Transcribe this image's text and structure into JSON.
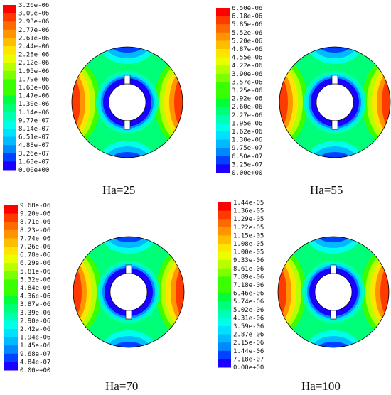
{
  "colormap": [
    "#1a00ff",
    "#0042ff",
    "#0088ff",
    "#00b9ff",
    "#00e0ff",
    "#00ffe6",
    "#00ffb0",
    "#00ff78",
    "#00ff3a",
    "#3aff00",
    "#7cff00",
    "#b6ff00",
    "#e9ff00",
    "#ffe400",
    "#ffbd00",
    "#ff9400",
    "#ff6a00",
    "#ff3a00",
    "#ff0000"
  ],
  "panels": [
    {
      "caption": "Ha=25",
      "labels": [
        "3.26e-06",
        "3.09e-06",
        "2.93e-06",
        "2.77e-06",
        "2.61e-06",
        "2.44e-06",
        "2.28e-06",
        "2.12e-06",
        "1.95e-06",
        "1.79e-06",
        "1.63e-06",
        "1.47e-06",
        "1.30e-06",
        "1.14e-06",
        "9.77e-07",
        "8.14e-07",
        "6.51e-07",
        "4.88e-07",
        "3.26e-07",
        "1.63e-07",
        "0.00e+00"
      ]
    },
    {
      "caption": "Ha=55",
      "labels": [
        "6.50e-06",
        "6.18e-06",
        "5.85e-06",
        "5.52e-06",
        "5.20e-06",
        "4.87e-06",
        "4.55e-06",
        "4.22e-06",
        "3.90e-06",
        "3.57e-06",
        "3.25e-06",
        "2.92e-06",
        "2.60e-06",
        "2.27e-06",
        "1.95e-06",
        "1.62e-06",
        "1.30e-06",
        "9.75e-07",
        "6.50e-07",
        "3.25e-07",
        "0.00e+00"
      ]
    },
    {
      "caption": "Ha=70",
      "labels": [
        "9.68e-06",
        "9.20e-06",
        "8.71e-06",
        "8.23e-06",
        "7.74e-06",
        "7.26e-06",
        "6.78e-06",
        "6.29e-06",
        "5.81e-06",
        "5.32e-06",
        "4.84e-06",
        "4.36e-06",
        "3.87e-06",
        "3.39e-06",
        "2.90e-06",
        "2.42e-06",
        "1.94e-06",
        "1.45e-06",
        "9.68e-07",
        "4.84e-07",
        "0.00e+00"
      ]
    },
    {
      "caption": "Ha=100",
      "labels": [
        "1.44e-05",
        "1.36e-05",
        "1.29e-05",
        "1.22e-05",
        "1.15e-05",
        "1.08e-05",
        "1.00e-05",
        "9.33e-06",
        "8.61e-06",
        "7.89e-06",
        "7.18e-06",
        "6.46e-06",
        "5.74e-06",
        "5.02e-06",
        "4.31e-06",
        "3.59e-06",
        "2.87e-06",
        "2.15e-06",
        "1.44e-06",
        "7.18e-07",
        "0.00e+00"
      ]
    }
  ]
}
